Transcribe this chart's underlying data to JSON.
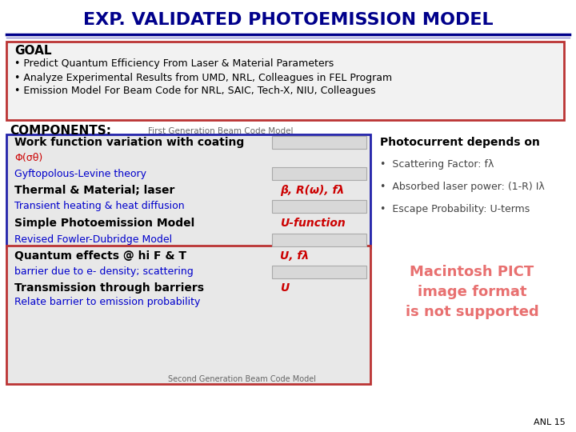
{
  "title": "EXP. VALIDATED PHOTOEMISSION MODEL",
  "title_color": "#00008B",
  "title_fontsize": 16,
  "bg_color": "#FFFFFF",
  "goal_header": "GOAL",
  "goal_bullets": [
    "Predict Quantum Efficiency From Laser & Material Parameters",
    "Analyze Experimental Results from UMD, NRL, Colleagues in FEL Program",
    "Emission Model For Beam Code for NRL, SAIC, Tech-X, NIU, Colleagues"
  ],
  "components_label": "COMPONENTS:",
  "first_gen_label": "First Generation Beam Code Model",
  "second_gen_label": "Second Generation Beam Code Model",
  "left_box_rows": [
    {
      "text": "Work function variation with coating",
      "bold": true,
      "color": "#000000",
      "has_box": true
    },
    {
      "text": "Φ(σθ)",
      "bold": false,
      "color": "#CC0000",
      "has_box": false
    },
    {
      "text": "Gyftopolous-Levine theory",
      "bold": false,
      "color": "#0000CC",
      "has_box": true
    },
    {
      "text": "Thermal & Material; laser",
      "bold": true,
      "color": "#000000",
      "has_box": false
    },
    {
      "text": "Transient heating & heat diffusion",
      "bold": false,
      "color": "#0000CC",
      "has_box": true
    },
    {
      "text": "Simple Photoemission Model",
      "bold": true,
      "color": "#000000",
      "has_box": false
    },
    {
      "text": "Revised Fowler-Dubridge Model",
      "bold": false,
      "color": "#0000CC",
      "has_box": true
    },
    {
      "text": "Quantum effects @ hi F & T",
      "bold": true,
      "color": "#000000",
      "has_box": false
    },
    {
      "text": "barrier due to e- density; scattering",
      "bold": false,
      "color": "#0000CC",
      "has_box": true
    },
    {
      "text": "Transmission through barriers",
      "bold": true,
      "color": "#000000",
      "has_box": false
    },
    {
      "text": "Relate barrier to emission probability",
      "bold": false,
      "color": "#0000CC",
      "has_box": false
    }
  ],
  "right_labels": {
    "3": {
      "text": "β, R(ω), fλ",
      "color": "#CC0000"
    },
    "5": {
      "text": "U-function",
      "color": "#CC0000"
    },
    "7": {
      "text": "U, fλ",
      "color": "#CC0000"
    },
    "9": {
      "text": "U",
      "color": "#CC0000"
    }
  },
  "photocurrent_header": "Photocurrent depends on",
  "photocurrent_bullets": [
    "Scattering Factor: fλ",
    "Absorbed laser power: (1-R) Iλ",
    "Escape Probability: U-terms"
  ],
  "pict_text": "Macintosh PICT\nimage format\nis not supported",
  "pict_color": "#E87070",
  "anl_text": "ANL 15"
}
